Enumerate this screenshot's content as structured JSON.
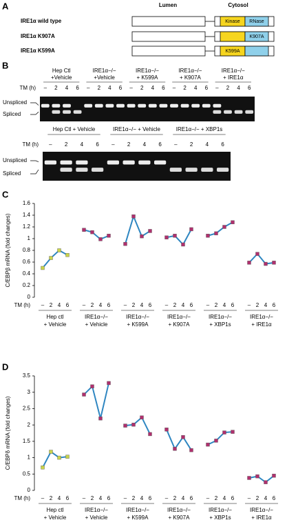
{
  "panel_a": {
    "label": "A",
    "lumen": "Lumen",
    "cytosol": "Cytosol",
    "rows": [
      {
        "name": "IRE1α wild type",
        "kinase": "Kinase",
        "rnase": "RNase"
      },
      {
        "name": "IRE1α K907A",
        "rnase": "K907A"
      },
      {
        "name": "IRE1α K599A",
        "kinase": "K599A"
      }
    ]
  },
  "panel_b": {
    "label": "B",
    "gel1": {
      "x_label": "TM (h)",
      "lanes": [
        "–",
        "2",
        "4",
        "6"
      ],
      "band_labels": [
        "Unspliced",
        "Spliced"
      ],
      "groups": [
        {
          "label": "Hep Ctl",
          "sublabel": "+Vehicle"
        },
        {
          "label": "IRE1α−/−",
          "sublabel": "+Vehicle"
        },
        {
          "label": "IRE1α−/−",
          "sublabel": "+ K599A"
        },
        {
          "label": "IRE1α−/−",
          "sublabel": "+ K907A"
        },
        {
          "label": "IRE1α−/−",
          "sublabel": "+ IRE1α"
        }
      ]
    },
    "gel2": {
      "x_label": "TM (h)",
      "lanes": [
        "–",
        "2",
        "4",
        "6"
      ],
      "band_labels": [
        "Unspliced",
        "Spliced"
      ],
      "groups": [
        {
          "label": "Hep Ctl + Vehicle"
        },
        {
          "label": "IRE1α−/− + Vehicle"
        },
        {
          "label": "IRE1α−/− + XBP1s"
        }
      ]
    }
  },
  "chart_data": [
    {
      "type": "line",
      "panel": "C",
      "y_label": "C/EBPβ mRNA (fold changes)",
      "x_label": "TM (h)",
      "categories": [
        "–",
        "2",
        "4",
        "6"
      ],
      "ylim": [
        0,
        1.6
      ],
      "yticks": [
        0,
        0.2,
        0.4,
        0.6,
        0.8,
        1,
        1.2,
        1.4,
        1.6
      ],
      "line_color": "#2e86c1",
      "series": [
        {
          "name": "Hep ctl",
          "name2": "+ Vehicle",
          "color": "#c9d44b",
          "values": [
            0.5,
            0.67,
            0.8,
            0.72
          ]
        },
        {
          "name": "IRE1α−/−",
          "name2": "+ Vehicle",
          "color": "#b0306e",
          "values": [
            1.15,
            1.11,
            0.99,
            1.05
          ]
        },
        {
          "name": "IRE1α−/−",
          "name2": "+ K599A",
          "color": "#b0306e",
          "values": [
            0.91,
            1.38,
            1.04,
            1.13
          ]
        },
        {
          "name": "IRE1α−/−",
          "name2": "+ K907A",
          "color": "#b0306e",
          "values": [
            1.02,
            1.05,
            0.9,
            1.16
          ]
        },
        {
          "name": "IRE1α−/−",
          "name2": "+ XBP1s",
          "color": "#b0306e",
          "values": [
            1.05,
            1.09,
            1.2,
            1.28
          ]
        },
        {
          "name": "IRE1α−/−",
          "name2": "+ IRE1α",
          "color": "#b0306e",
          "values": [
            0.59,
            0.74,
            0.57,
            0.59
          ]
        }
      ]
    },
    {
      "type": "line",
      "panel": "D",
      "y_label": "C/EBPδ mRNA (fold changes)",
      "x_label": "TM (h)",
      "categories": [
        "–",
        "2",
        "4",
        "6"
      ],
      "ylim": [
        0,
        3.5
      ],
      "yticks": [
        0,
        0.5,
        1,
        1.5,
        2,
        2.5,
        3,
        3.5
      ],
      "line_color": "#2e86c1",
      "series": [
        {
          "name": "Hep ctl",
          "name2": "+ Vehicle",
          "color": "#c9d44b",
          "values": [
            0.7,
            1.18,
            1.0,
            1.03
          ]
        },
        {
          "name": "IRE1α−/−",
          "name2": "+ Vehicle",
          "color": "#b0306e",
          "values": [
            2.93,
            3.18,
            2.2,
            3.28
          ]
        },
        {
          "name": "IRE1α−/−",
          "name2": "+ K599A",
          "color": "#b0306e",
          "values": [
            1.98,
            2.01,
            2.23,
            1.72
          ]
        },
        {
          "name": "IRE1α−/−",
          "name2": "+ K907A",
          "color": "#b0306e",
          "values": [
            1.86,
            1.27,
            1.63,
            1.23
          ]
        },
        {
          "name": "IRE1α−/−",
          "name2": "+ XBP1s",
          "color": "#b0306e",
          "values": [
            1.4,
            1.52,
            1.77,
            1.79
          ]
        },
        {
          "name": "IRE1α−/−",
          "name2": "+ IRE1α",
          "color": "#b0306e",
          "values": [
            0.38,
            0.43,
            0.25,
            0.45
          ]
        }
      ]
    }
  ]
}
